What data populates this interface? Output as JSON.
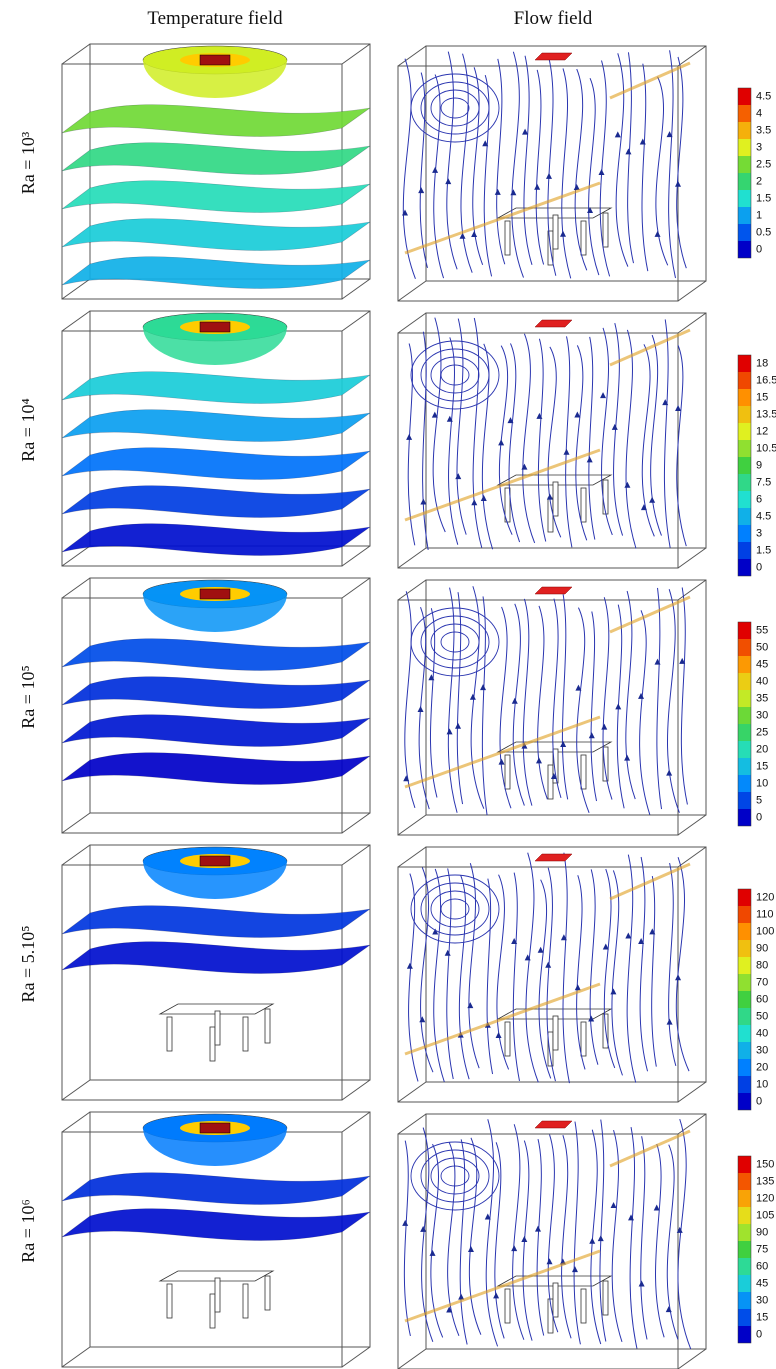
{
  "column_headers": [
    "Temperature field",
    "Flow field"
  ],
  "rows": [
    {
      "label": "Ra = 10³",
      "colorbar_ticks": [
        0,
        0.5,
        1,
        1.5,
        2,
        2.5,
        3,
        3.5,
        4,
        4.5
      ]
    },
    {
      "label": "Ra = 10⁴",
      "colorbar_ticks": [
        0,
        1.5,
        3,
        4.5,
        6,
        7.5,
        9,
        10.5,
        12,
        13.5,
        15,
        16.5,
        18
      ]
    },
    {
      "label": "Ra = 10⁵",
      "colorbar_ticks": [
        0,
        5,
        10,
        15,
        20,
        25,
        30,
        35,
        40,
        45,
        50,
        55
      ]
    },
    {
      "label": "Ra = 5.10⁵",
      "colorbar_ticks": [
        0,
        10,
        20,
        30,
        40,
        50,
        60,
        70,
        80,
        90,
        100,
        110,
        120
      ]
    },
    {
      "label": "Ra = 10⁶",
      "colorbar_ticks": [
        0,
        15,
        30,
        45,
        60,
        75,
        90,
        105,
        120,
        135,
        150
      ]
    }
  ]
}
